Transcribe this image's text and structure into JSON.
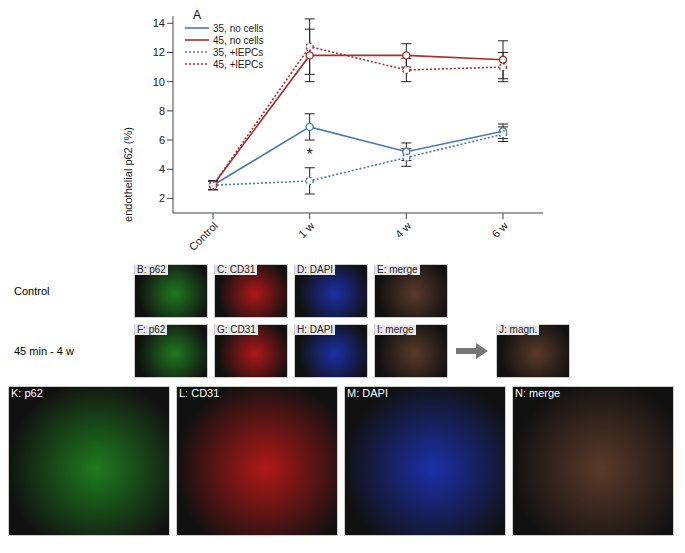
{
  "chart_data": {
    "type": "line",
    "title": "A",
    "y_label": "endothelial p62 (%)",
    "categories": [
      "Control",
      "1 w",
      "4 w",
      "6 w"
    ],
    "ylim": [
      1,
      14.5
    ],
    "yticks": [
      2,
      4,
      6,
      8,
      10,
      12,
      14
    ],
    "grid": false,
    "legend": "upper left",
    "series": [
      {
        "name": "35, no cells",
        "color": "#4a78b5",
        "line_style": "solid",
        "marker": "circle",
        "values": [
          2.9,
          6.9,
          5.2,
          6.6
        ],
        "errors": [
          0.3,
          0.9,
          0.6,
          0.5
        ]
      },
      {
        "name": "45, no cells",
        "color": "#a3302b",
        "line_style": "solid",
        "marker": "circle",
        "values": [
          2.9,
          11.8,
          11.8,
          11.5
        ],
        "errors": [
          0.3,
          1.8,
          0.8,
          1.3
        ]
      },
      {
        "name": "35, +lEPCs",
        "color": "#4a78b5",
        "line_style": "dotted",
        "marker": "circle",
        "values": [
          2.9,
          3.2,
          4.8,
          6.4
        ],
        "errors": [
          0.3,
          0.9,
          0.6,
          0.5
        ]
      },
      {
        "name": "45, +lEPCs",
        "color": "#a3302b",
        "line_style": "dotted",
        "marker": "circle",
        "values": [
          2.9,
          12.4,
          10.8,
          11.0
        ],
        "errors": [
          0.3,
          1.9,
          0.8,
          1.0
        ]
      }
    ],
    "annotations": [
      {
        "text": "*",
        "x": "1 w",
        "y": 5
      }
    ]
  },
  "panels": {
    "rows": [
      {
        "label": "Control",
        "panels": [
          "B: p62",
          "C: CD31",
          "D: DAPI",
          "E: merge"
        ]
      },
      {
        "label": "45 min - 4 w",
        "panels": [
          "F: p62",
          "G: CD31",
          "H: DAPI",
          "I: merge",
          "J: magn."
        ]
      },
      {
        "panels": [
          "K: p62",
          "L: CD31",
          "M: DAPI",
          "N: merge"
        ]
      }
    ]
  }
}
